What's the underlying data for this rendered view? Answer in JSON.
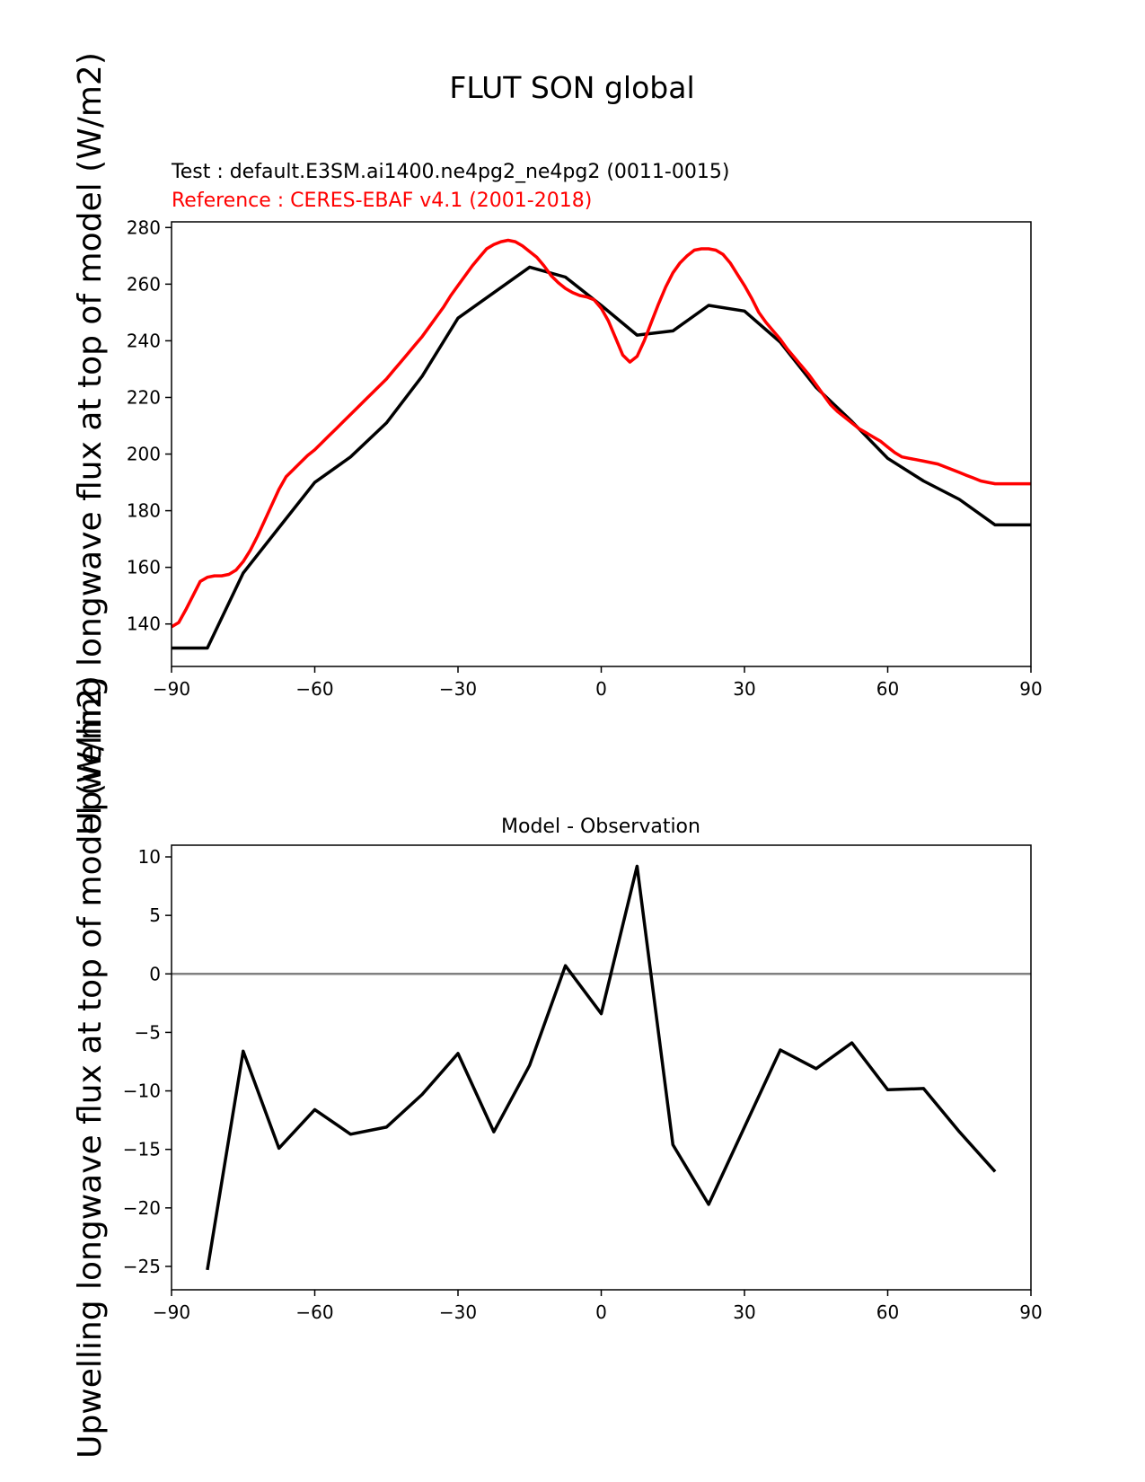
{
  "figure": {
    "title": "FLUT SON global",
    "test_label": "Test : default.E3SM.ai1400.ne4pg2_ne4pg2 (0011-0015)",
    "reference_label": "Reference : CERES-EBAF v4.1 (2001-2018)",
    "ylabel_top": "Upwelling longwave flux at top of model (W/m2)",
    "ylabel_bottom": "Upwelling longwave flux at top of model (W/m2)",
    "diff_title": "Model - Observation"
  },
  "colors": {
    "test": "#000000",
    "reference": "#ff0000",
    "zero_line": "#808080",
    "axes": "#000000"
  },
  "chart_data": [
    {
      "type": "line",
      "title": "",
      "xlim": [
        -90,
        90
      ],
      "ylim": [
        125,
        282
      ],
      "xticks": [
        -90,
        -60,
        -30,
        0,
        30,
        60,
        90
      ],
      "yticks": [
        140,
        160,
        180,
        200,
        220,
        240,
        260,
        280
      ],
      "grid": false,
      "series": [
        {
          "role": "test",
          "x": [
            -90,
            -82.5,
            -75,
            -67.5,
            -60,
            -52.5,
            -45,
            -37.5,
            -30,
            -22.5,
            -15,
            -7.5,
            0,
            7.5,
            15,
            22.5,
            30,
            37.5,
            45,
            52.5,
            60,
            67.5,
            75,
            82.5,
            90
          ],
          "y": [
            131.5,
            131.5,
            158,
            174,
            190,
            199,
            211,
            227.5,
            248,
            257,
            266,
            262.5,
            252.5,
            242,
            243.5,
            252.5,
            250.5,
            239.5,
            223.5,
            211.5,
            198.5,
            190.5,
            184,
            175,
            175
          ]
        },
        {
          "role": "reference",
          "x": [
            -90,
            -88.5,
            -87,
            -85.5,
            -84,
            -82.5,
            -81,
            -79.5,
            -78,
            -76.5,
            -75,
            -73.5,
            -72,
            -70.5,
            -69,
            -67.5,
            -66,
            -64.5,
            -63,
            -61.5,
            -60,
            -58.5,
            -57,
            -55.5,
            -54,
            -52.5,
            -51,
            -49.5,
            -48,
            -46.5,
            -45,
            -43.5,
            -42,
            -40.5,
            -39,
            -37.5,
            -36,
            -34.5,
            -33,
            -31.5,
            -30,
            -28.5,
            -27,
            -25.5,
            -24,
            -22.5,
            -21,
            -19.5,
            -18,
            -16.5,
            -15,
            -13.5,
            -12,
            -10.5,
            -9,
            -7.5,
            -6,
            -4.5,
            -3,
            -1.5,
            0,
            1.5,
            3,
            4.5,
            6,
            7.5,
            9,
            10.5,
            12,
            13.5,
            15,
            16.5,
            18,
            19.5,
            21,
            22.5,
            24,
            25.5,
            27,
            28.5,
            30,
            31.5,
            33,
            34.5,
            36,
            37.5,
            39,
            40.5,
            42,
            43.5,
            45,
            46.5,
            48,
            49.5,
            51,
            52.5,
            54,
            55.5,
            57,
            58.5,
            60,
            61.5,
            63,
            64.5,
            66,
            67.5,
            69,
            70.5,
            72,
            73.5,
            75,
            76.5,
            78,
            79.5,
            81,
            82.5,
            84,
            85.5,
            87,
            88.5,
            90
          ],
          "y": [
            139,
            140.5,
            145,
            150,
            155,
            156.5,
            157,
            157,
            157.5,
            159,
            162,
            166,
            171,
            176.5,
            182,
            187.5,
            192,
            194.5,
            197,
            199.5,
            201.5,
            204,
            206.5,
            209,
            211.5,
            214,
            216.5,
            219,
            221.5,
            224,
            226.5,
            229.5,
            232.5,
            235.5,
            238.5,
            241.5,
            245,
            248.5,
            252,
            256,
            259.5,
            263,
            266.5,
            269.5,
            272.5,
            274,
            275,
            275.5,
            275,
            273.5,
            271.5,
            269.5,
            266.5,
            263,
            260.5,
            258.5,
            257,
            256,
            255.5,
            254.5,
            251.5,
            247,
            241,
            235,
            232.5,
            234.5,
            240,
            246.5,
            253,
            259,
            264,
            267.5,
            270,
            272,
            272.5,
            272.5,
            272,
            270.5,
            267.5,
            263.5,
            259.5,
            255,
            250,
            246.5,
            243.5,
            240.5,
            237,
            234,
            231,
            228,
            224.5,
            221,
            217.5,
            215,
            213,
            211,
            209,
            207.5,
            206,
            204.5,
            202.5,
            200.5,
            199,
            198.5,
            198,
            197.5,
            197,
            196.5,
            195.5,
            194.5,
            193.5,
            192.5,
            191.5,
            190.5,
            190,
            189.5,
            189.5,
            189.5,
            189.5,
            189.5,
            189.5
          ]
        }
      ]
    },
    {
      "type": "line",
      "title": "Model - Observation",
      "xlim": [
        -90,
        90
      ],
      "ylim": [
        -27,
        11
      ],
      "xticks": [
        -90,
        -60,
        -30,
        0,
        30,
        60,
        90
      ],
      "yticks": [
        -25,
        -20,
        -15,
        -10,
        -5,
        0,
        5,
        10
      ],
      "grid": false,
      "zero_line": 0,
      "series": [
        {
          "role": "difference",
          "x": [
            -82.5,
            -75,
            -67.5,
            -60,
            -52.5,
            -45,
            -37.5,
            -30,
            -22.5,
            -15,
            -7.5,
            0,
            7.5,
            15,
            22.5,
            30,
            37.5,
            45,
            52.5,
            60,
            67.5,
            75,
            82.5
          ],
          "y": [
            -25.3,
            -6.6,
            -14.9,
            -11.6,
            -13.7,
            -13.1,
            -10.3,
            -6.8,
            -13.5,
            -7.8,
            0.7,
            -3.4,
            9.2,
            -14.6,
            -19.7,
            -13.1,
            -6.5,
            -8.1,
            -5.9,
            -9.9,
            -9.8,
            -13.5,
            -16.9
          ]
        }
      ]
    }
  ]
}
